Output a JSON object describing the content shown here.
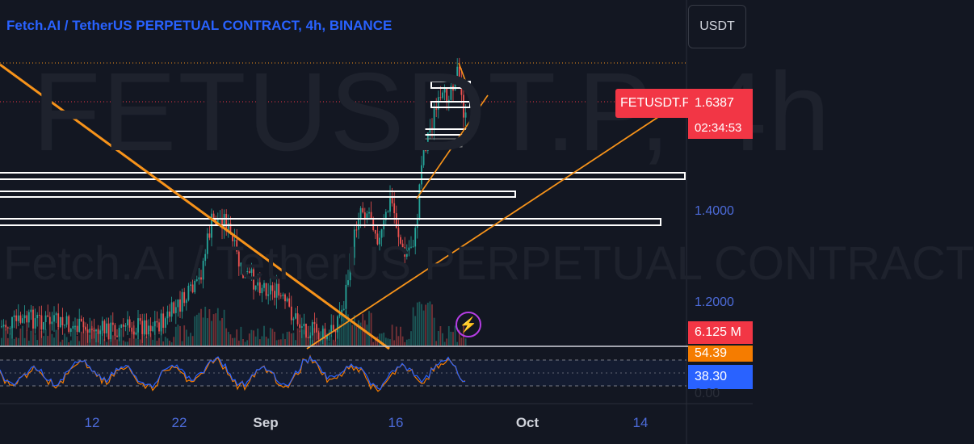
{
  "chart_title": "Fetch.AI / TetherUS PERPETUAL CONTRACT, 4h, BINANCE",
  "watermark": {
    "symbol_line": "FETUSDT.P, 4h",
    "description_line": "Fetch.AI / TetherUS PERPETUAL CONTRACT"
  },
  "currency_button": "USDT",
  "ticker_label": "FETUSDT.P",
  "last_price": "1.6387",
  "bar_countdown": "02:34:53",
  "price_axis_labels": [
    "1.4000",
    "1.2000"
  ],
  "volume_label": "6.125 M",
  "rsi_labels": {
    "upper": "54.39",
    "current": "38.30",
    "lower": "0.00"
  },
  "time_axis_labels": [
    "12",
    "22",
    "Sep",
    "16",
    "Oct",
    "14"
  ],
  "icons": {
    "flash": "lightning-bolt-icon"
  },
  "colors": {
    "background": "#131722",
    "up_candle": "#26a69a",
    "down_candle": "#ef5350",
    "trendline": "#f7931a",
    "price_tag": "#f23645",
    "rsi_line": "#2962ff",
    "rsi_signal": "#f57c00",
    "title": "#2962ff"
  }
}
